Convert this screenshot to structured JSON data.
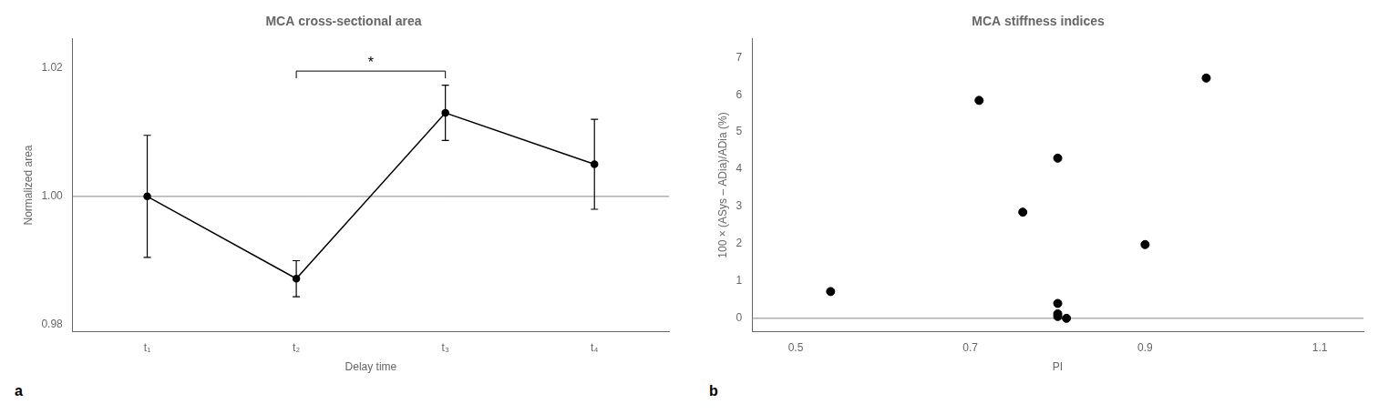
{
  "chart_data": [
    {
      "type": "line",
      "title": "MCA cross-sectional area",
      "x_label": "Delay time",
      "y_label": "Normalized area",
      "categories": [
        "t₁",
        "t₂",
        "t₃",
        "t₄"
      ],
      "values": [
        1.0,
        0.9872,
        1.013,
        1.005
      ],
      "error_low": [
        0.0095,
        0.0028,
        0.0043,
        0.007
      ],
      "error_high": [
        0.0095,
        0.0028,
        0.0043,
        0.007
      ],
      "color": "#000000",
      "marker": "circle",
      "ylim": [
        0.979,
        1.0245
      ],
      "yticks": [
        0.98,
        {
          "value": 1.0,
          "label": "1.00"
        },
        1.02
      ],
      "grid": false,
      "legend": false,
      "reference_line": 1.0,
      "significance": {
        "from": "t₂",
        "to": "t₃",
        "y": 1.0195,
        "label": "*"
      },
      "panel_label": "a"
    },
    {
      "type": "scatter",
      "title": "MCA stiffness indices",
      "x_label": "PI",
      "y_label": "100 × (ASys – ADia)/ADia (%)",
      "x": [
        0.54,
        0.71,
        0.76,
        0.8,
        0.8,
        0.8,
        0.8,
        0.81,
        0.9,
        0.97
      ],
      "values": [
        0.72,
        5.85,
        2.85,
        4.3,
        0.4,
        0.12,
        0.05,
        0.0,
        1.98,
        6.45
      ],
      "color": "#000000",
      "marker": "circle",
      "xlim": [
        0.45,
        1.15
      ],
      "xticks": [
        0.5,
        0.7,
        0.9,
        1.1
      ],
      "ylim": [
        -0.35,
        7.5
      ],
      "yticks": [
        0,
        1,
        2,
        3,
        4,
        5,
        6,
        7
      ],
      "grid": false,
      "legend": false,
      "reference_line": 0,
      "panel_label": "b"
    }
  ]
}
